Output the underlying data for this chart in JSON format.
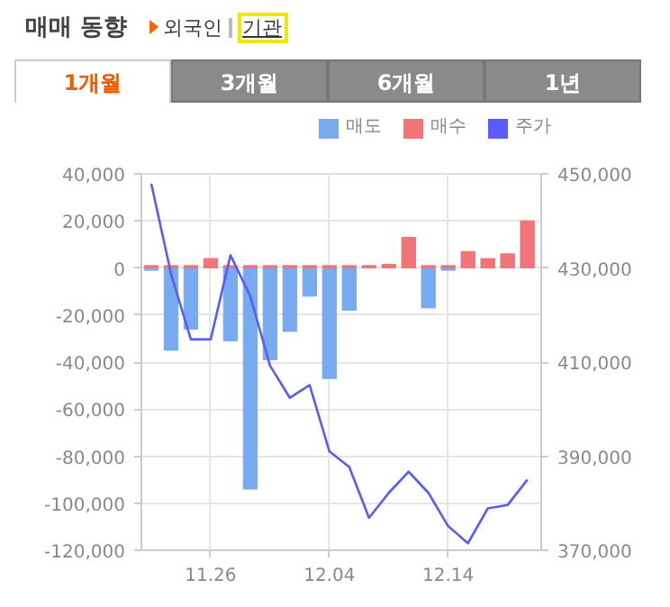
{
  "chart_data": {
    "type": "bar",
    "title": "매매 동향",
    "annotations": [
      "외국인",
      "기관",
      "1개월",
      "3개월",
      "6개월",
      "1년"
    ],
    "categories": [
      null,
      null,
      null,
      "11.26",
      null,
      null,
      null,
      null,
      null,
      "12.04",
      null,
      null,
      null,
      null,
      null,
      "12.14",
      null,
      null,
      null,
      null
    ],
    "series": [
      {
        "name": "매도",
        "color": "#78aaf0",
        "values": [
          -1000,
          -35000,
          -26000,
          0,
          -31000,
          -94000,
          -39000,
          -27000,
          -12000,
          -47000,
          -18000,
          0,
          0,
          0,
          -17000,
          -1000,
          0,
          0,
          0,
          0
        ]
      },
      {
        "name": "매수",
        "color": "#f07478",
        "values": [
          1000,
          1000,
          1000,
          4000,
          1000,
          1000,
          1000,
          1000,
          1000,
          1000,
          1000,
          1000,
          1500,
          13000,
          1000,
          1000,
          7000,
          4000,
          6000,
          20000
        ]
      },
      {
        "name": "주가",
        "type": "line",
        "axis": "y2",
        "color": "#5a5aff",
        "values": [
          447900,
          428700,
          414800,
          414800,
          432700,
          424000,
          409200,
          402400,
          405100,
          391000,
          387700,
          376900,
          382200,
          386700,
          382200,
          375100,
          371500,
          378900,
          379600,
          385000
        ]
      }
    ],
    "ylim": [
      -120000,
      40000
    ],
    "yticks": [
      {
        "value": -120000,
        "label": "-120,000"
      },
      {
        "value": -100000,
        "label": "-100,000"
      },
      {
        "value": -80000,
        "label": "-80,000"
      },
      {
        "value": -60000,
        "label": "-60,000"
      },
      {
        "value": -40000,
        "label": "-40,000"
      },
      {
        "value": -20000,
        "label": "-20,000"
      },
      0,
      {
        "value": 20000,
        "label": "20,000"
      },
      {
        "value": 40000,
        "label": "40,000"
      }
    ],
    "y2lim": [
      370000,
      450000
    ],
    "y2ticks": [
      {
        "value": 370000,
        "label": "370,000"
      },
      {
        "value": 390000,
        "label": "390,000"
      },
      {
        "value": 410000,
        "label": "410,000"
      },
      {
        "value": 430000,
        "label": "430,000"
      },
      {
        "value": 450000,
        "label": "450,000"
      }
    ],
    "grid": true,
    "legend": "top right"
  }
}
